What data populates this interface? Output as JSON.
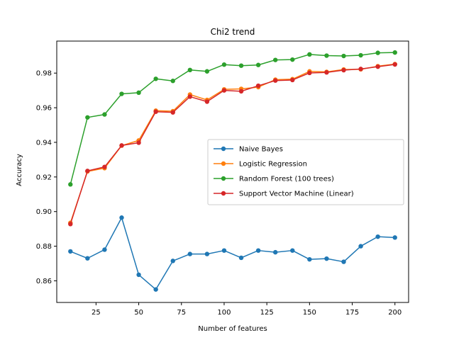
{
  "chart_data": {
    "type": "line",
    "title": "Chi2 trend",
    "xlabel": "Number of features",
    "ylabel": "Accuracy",
    "xlim": [
      2,
      208
    ],
    "ylim": [
      0.8475,
      0.9985
    ],
    "xticks": [
      25,
      50,
      75,
      100,
      125,
      150,
      175,
      200
    ],
    "yticks": [
      0.86,
      0.88,
      0.9,
      0.92,
      0.94,
      0.96,
      0.98
    ],
    "ytick_labels": [
      "0.86",
      "0.88",
      "0.90",
      "0.92",
      "0.94",
      "0.96",
      "0.98"
    ],
    "legend_position": "center-right",
    "x": [
      10,
      20,
      30,
      40,
      50,
      60,
      70,
      80,
      90,
      100,
      110,
      120,
      130,
      140,
      150,
      160,
      170,
      180,
      190,
      200
    ],
    "series": [
      {
        "name": "Naive Bayes",
        "color": "#1f77b4",
        "values": [
          0.877,
          0.873,
          0.878,
          0.8965,
          0.8635,
          0.855,
          0.8715,
          0.8755,
          0.8755,
          0.8775,
          0.8733,
          0.8775,
          0.8765,
          0.8775,
          0.8724,
          0.8728,
          0.871,
          0.88,
          0.8855,
          0.885
        ]
      },
      {
        "name": "Logistic Regression",
        "color": "#ff7f0e",
        "values": [
          0.8935,
          0.9232,
          0.9251,
          0.9381,
          0.9411,
          0.9583,
          0.958,
          0.9676,
          0.9645,
          0.9706,
          0.9709,
          0.9719,
          0.9762,
          0.9765,
          0.981,
          0.9807,
          0.9821,
          0.9822,
          0.984,
          0.9852
        ]
      },
      {
        "name": "Random Forest (100 trees)",
        "color": "#2ca02c",
        "values": [
          0.9157,
          0.9544,
          0.9561,
          0.968,
          0.9687,
          0.9767,
          0.9755,
          0.9818,
          0.981,
          0.9849,
          0.9843,
          0.9847,
          0.9876,
          0.9878,
          0.9908,
          0.9901,
          0.9899,
          0.9903,
          0.9917,
          0.9919
        ]
      },
      {
        "name": "Support Vector Machine (Linear)",
        "color": "#d62728",
        "values": [
          0.8928,
          0.9235,
          0.9258,
          0.9382,
          0.9398,
          0.9577,
          0.9573,
          0.9664,
          0.9635,
          0.97,
          0.9695,
          0.9727,
          0.9757,
          0.976,
          0.9801,
          0.9804,
          0.9817,
          0.9824,
          0.9837,
          0.985
        ]
      }
    ]
  }
}
